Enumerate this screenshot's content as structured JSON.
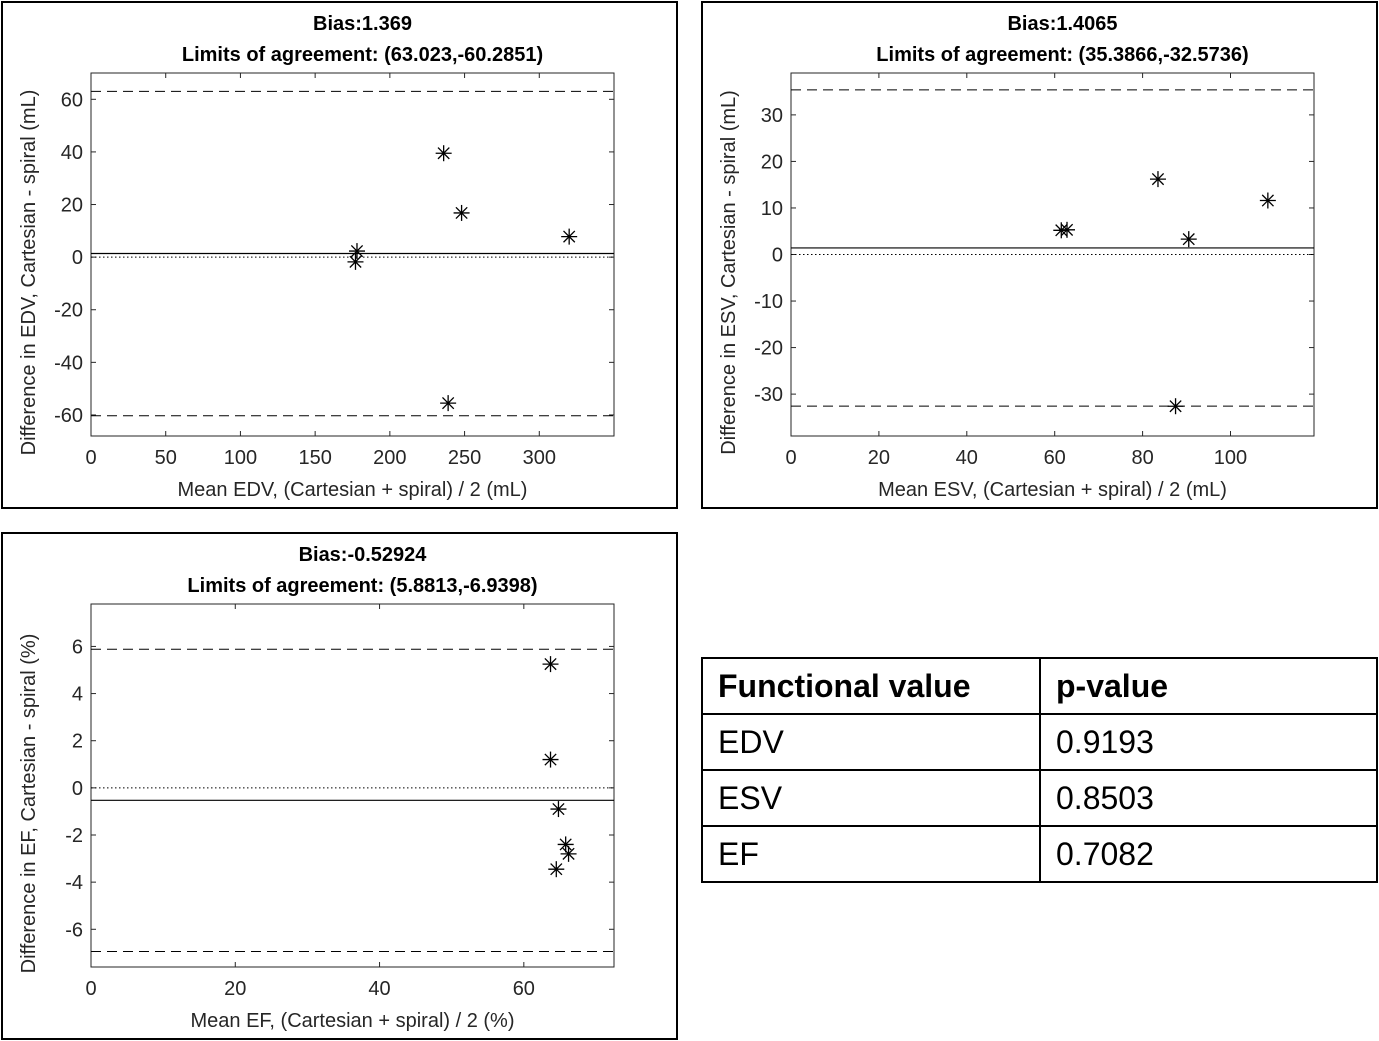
{
  "chart_data": [
    {
      "type": "scatter",
      "title": "Bias:1.369",
      "subtitle": "Limits of agreement: (63.023,-60.2851)",
      "xlabel": "Mean EDV, (Cartesian + spiral) / 2 (mL)",
      "ylabel": "Difference in EDV, Cartesian - spiral (mL)",
      "xlim": [
        0,
        350
      ],
      "ylim": [
        -68,
        70
      ],
      "xticks": [
        0,
        50,
        100,
        150,
        200,
        250,
        300
      ],
      "yticks": [
        -60,
        -40,
        -20,
        0,
        20,
        40,
        60
      ],
      "bias": 1.369,
      "loa_upper": 63.023,
      "loa_lower": -60.2851,
      "zero_line": 0,
      "points": [
        {
          "x": 178,
          "y": 2.3
        },
        {
          "x": 177,
          "y": -1.8
        },
        {
          "x": 236,
          "y": 39.5
        },
        {
          "x": 248,
          "y": 16.8
        },
        {
          "x": 320,
          "y": 7.8
        },
        {
          "x": 239,
          "y": -55.5
        }
      ]
    },
    {
      "type": "scatter",
      "title": "Bias:1.4065",
      "subtitle": "Limits of agreement: (35.3866,-32.5736)",
      "xlabel": "Mean ESV, (Cartesian + spiral) / 2 (mL)",
      "ylabel": "Difference in ESV, Cartesian - spiral (mL)",
      "xlim": [
        0,
        119
      ],
      "ylim": [
        -39,
        39
      ],
      "xticks": [
        0,
        20,
        40,
        60,
        80,
        100
      ],
      "yticks": [
        -30,
        -20,
        -10,
        0,
        10,
        20,
        30
      ],
      "bias": 1.4065,
      "loa_upper": 35.3866,
      "loa_lower": -32.5736,
      "zero_line": 0,
      "points": [
        {
          "x": 61.5,
          "y": 5.2
        },
        {
          "x": 62.8,
          "y": 5.3
        },
        {
          "x": 83.5,
          "y": 16.2
        },
        {
          "x": 90.5,
          "y": 3.3
        },
        {
          "x": 108.5,
          "y": 11.6
        },
        {
          "x": 87.5,
          "y": -32.6
        }
      ]
    },
    {
      "type": "scatter",
      "title": "Bias:-0.52924",
      "subtitle": "Limits of agreement: (5.8813,-6.9398)",
      "xlabel": "Mean EF, (Cartesian + spiral) / 2 (%)",
      "ylabel": "Difference in EF, Cartesian - spiral (%)",
      "xlim": [
        0,
        72.5
      ],
      "ylim": [
        -7.6,
        7.8
      ],
      "xticks": [
        0,
        20,
        40,
        60
      ],
      "yticks": [
        -6,
        -4,
        -2,
        0,
        2,
        4,
        6
      ],
      "bias": -0.52924,
      "loa_upper": 5.8813,
      "loa_lower": -6.9398,
      "zero_line": 0,
      "points": [
        {
          "x": 63.7,
          "y": 5.25
        },
        {
          "x": 63.7,
          "y": 1.2
        },
        {
          "x": 64.8,
          "y": -0.9
        },
        {
          "x": 65.8,
          "y": -2.4
        },
        {
          "x": 66.2,
          "y": -2.8
        },
        {
          "x": 64.5,
          "y": -3.45
        }
      ]
    }
  ],
  "table": {
    "headers": [
      "Functional value",
      "p-value"
    ],
    "rows": [
      [
        "EDV",
        "0.9193"
      ],
      [
        "ESV",
        "0.8503"
      ],
      [
        "EF",
        "0.7082"
      ]
    ]
  }
}
